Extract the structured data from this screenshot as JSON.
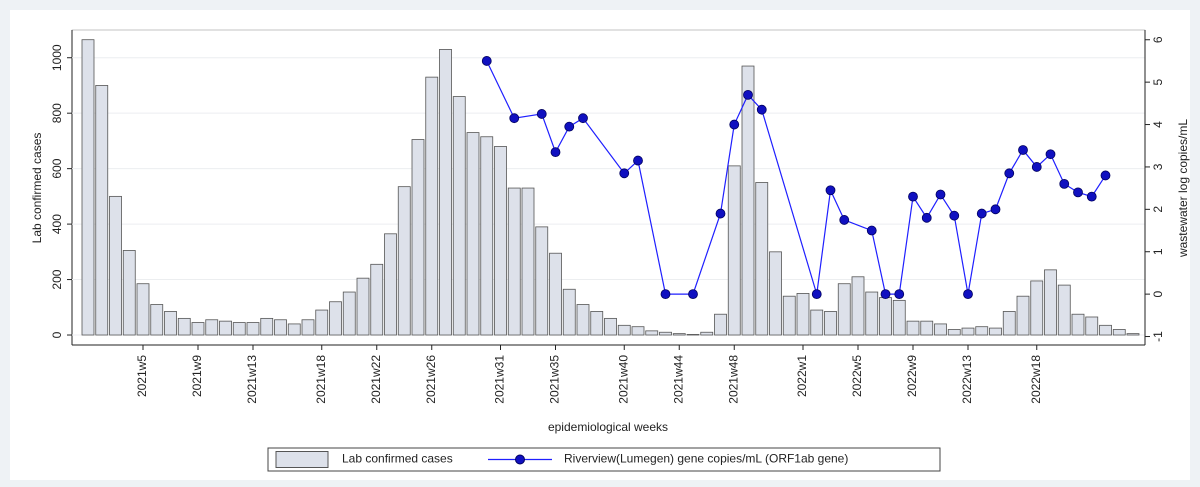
{
  "chart_data": {
    "type": "bar",
    "x_label": "epidemiological weeks",
    "y_label": "Lab confirmed cases",
    "y2_label": "wastewater log copies/mL",
    "categories": [
      null,
      null,
      null,
      null,
      "2021w5",
      null,
      null,
      null,
      "2021w9",
      null,
      null,
      null,
      "2021w13",
      null,
      null,
      null,
      null,
      "2021w18",
      null,
      null,
      null,
      "2021w22",
      null,
      null,
      null,
      "2021w26",
      null,
      null,
      null,
      null,
      "2021w31",
      null,
      null,
      null,
      "2021w35",
      null,
      null,
      null,
      null,
      "2021w40",
      null,
      null,
      null,
      "2021w44",
      null,
      null,
      null,
      "2021w48",
      null,
      null,
      null,
      null,
      "2022w1",
      null,
      null,
      null,
      "2022w5",
      null,
      null,
      null,
      "2022w9",
      null,
      null,
      null,
      "2022w13",
      null,
      null,
      null,
      null,
      "2022w18",
      null,
      null,
      null,
      null,
      null,
      null,
      null
    ],
    "series": [
      {
        "name": "Lab confirmed cases",
        "type": "bar",
        "color": "#dde1ea",
        "values": [
          1065,
          900,
          500,
          305,
          185,
          110,
          85,
          60,
          45,
          55,
          50,
          45,
          45,
          60,
          55,
          40,
          55,
          90,
          120,
          155,
          205,
          255,
          365,
          535,
          705,
          930,
          1030,
          860,
          730,
          715,
          680,
          530,
          530,
          390,
          295,
          165,
          110,
          85,
          60,
          35,
          30,
          15,
          10,
          5,
          2,
          10,
          75,
          610,
          970,
          550,
          300,
          140,
          150,
          90,
          85,
          185,
          210,
          155,
          135,
          125,
          50,
          50,
          40,
          20,
          25,
          30,
          25,
          85,
          140,
          195,
          235,
          180,
          75,
          65,
          35,
          20,
          5
        ]
      },
      {
        "name": "Riverview(Lumegen) gene copies/mL (ORF1ab gene)",
        "type": "line",
        "axis": "y2",
        "color": "#1f1fff",
        "values": [
          null,
          null,
          null,
          null,
          null,
          null,
          null,
          null,
          null,
          null,
          null,
          null,
          null,
          null,
          null,
          null,
          null,
          null,
          null,
          null,
          null,
          null,
          null,
          null,
          null,
          null,
          null,
          null,
          null,
          5.5,
          null,
          4.15,
          null,
          4.25,
          3.35,
          3.95,
          4.15,
          null,
          null,
          2.85,
          3.15,
          null,
          0,
          null,
          0,
          null,
          1.9,
          4.0,
          4.7,
          4.35,
          null,
          null,
          null,
          0,
          2.45,
          1.75,
          null,
          1.5,
          0,
          0,
          2.3,
          1.8,
          2.35,
          1.85,
          0,
          1.9,
          2.0,
          2.85,
          3.4,
          3.0,
          3.3,
          2.6,
          2.4,
          2.3,
          2.8,
          null,
          null
        ]
      }
    ],
    "connect_nulls": true,
    "ylim": [
      -36,
      1100
    ],
    "yticks": [
      0,
      200,
      400,
      600,
      800,
      1000
    ],
    "y2lim": [
      -1.2,
      6.23
    ],
    "y2ticks": [
      -1,
      0,
      1,
      2,
      3,
      4,
      5,
      6
    ],
    "grid": true
  }
}
